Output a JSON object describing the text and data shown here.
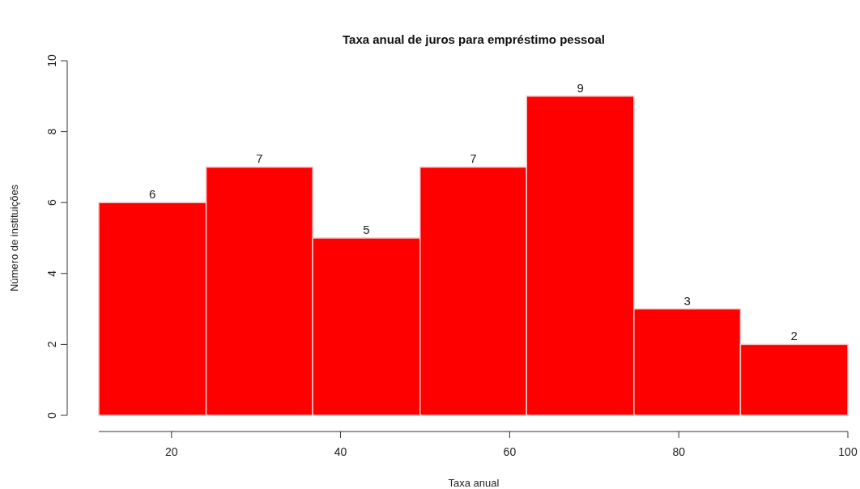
{
  "chart_data": {
    "type": "histogram",
    "title": "Taxa anual de juros para empréstimo pessoal",
    "xlabel": "Taxa anual",
    "ylabel": "Número de instituições",
    "bins": [
      11.4,
      24.1,
      36.7,
      49.4,
      62.0,
      74.7,
      87.3,
      100
    ],
    "values": [
      6,
      7,
      5,
      7,
      9,
      3,
      2
    ],
    "color": "#ff0000",
    "xlim": [
      11.4,
      100
    ],
    "xticks": [
      20,
      40,
      60,
      80,
      100
    ],
    "ylim": [
      0,
      10
    ],
    "yticks": [
      0,
      2,
      4,
      6,
      8,
      10
    ],
    "data_labels": true,
    "grid": false
  }
}
